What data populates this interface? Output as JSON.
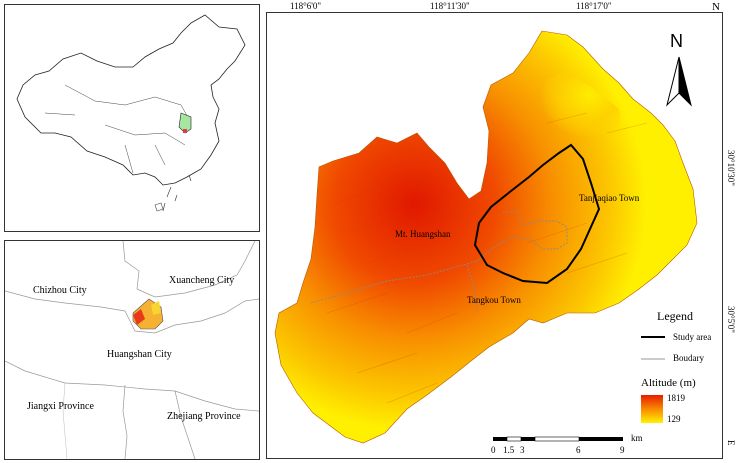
{
  "overview_map": {
    "region_labels": {
      "chizhou": "Chizhou City",
      "xuancheng": "Xuancheng City",
      "huangshan": "Huangshan City",
      "jiangxi": "Jiangxi Province",
      "zhejiang": "Zhejiang Province"
    }
  },
  "main_map": {
    "coordinates": {
      "top": [
        "118°6'0\"",
        "118°11'30\"",
        "118°17'0\""
      ],
      "right": [
        "30°10'30\"",
        "30°5'0\""
      ],
      "corner_top": "N",
      "corner_bottom": "E"
    },
    "north_arrow_label": "N",
    "place_labels": {
      "mt_huangshan": "Mt. Huangshan",
      "tanjiaqiao": "Tanjiaqiao Town",
      "tangkou": "Tangkou Town"
    },
    "legend": {
      "title": "Legend",
      "study_area": "Study area",
      "boundary": "Boudary",
      "altitude_title": "Altitude (m)",
      "altitude_max": "1819",
      "altitude_min": "129",
      "colors": {
        "high": "#e81d00",
        "low": "#fff200"
      }
    },
    "scale_bar": {
      "unit": "km",
      "ticks": [
        "0",
        "1.5",
        "3",
        "6",
        "9"
      ]
    }
  }
}
